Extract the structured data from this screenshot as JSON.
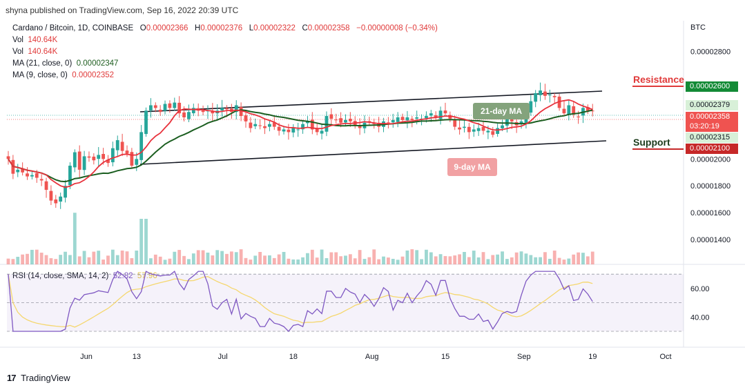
{
  "header": {
    "published": "shyna published on TradingView.com, Sep 16, 2022 20:39 UTC"
  },
  "legend": {
    "symbol": "Cardano / Bitcoin, 1D, COINBASE",
    "o_label": "O",
    "o_val": "0.00002366",
    "h_label": "H",
    "h_val": "0.00002376",
    "l_label": "L",
    "l_val": "0.00002322",
    "c_label": "C",
    "c_val": "0.00002358",
    "chg": "−0.00000008 (−0.34%)",
    "vol1_label": "Vol",
    "vol1_val": "140.64K",
    "vol2_label": "Vol",
    "vol2_val": "140.64K",
    "ma21_label": "MA (21, close, 0)",
    "ma21_val": "0.00002347",
    "ma9_label": "MA (9, close, 0)",
    "ma9_val": "0.00002352",
    "rsi_label": "RSI (14, close, SMA, 14, 2)",
    "rsi_val": "52.82",
    "rsi_sma_val": "57.96"
  },
  "axis": {
    "currency": "BTC",
    "price_ticks": [
      "0.00002800",
      "0.00002000",
      "0.00001800",
      "0.00001600",
      "0.00001400"
    ],
    "rsi_ticks": [
      "60.00",
      "40.00"
    ],
    "date_ticks": [
      "Jun",
      "13",
      "Jul",
      "18",
      "Aug",
      "15",
      "Sep",
      "19",
      "Oct"
    ]
  },
  "tags": {
    "resistance_price": "0.00002600",
    "price_a": "0.00002379",
    "current_price": "0.00002358",
    "countdown": "03:20:19",
    "price_b": "0.00002315",
    "support_price": "0.00002100"
  },
  "annotations": {
    "resistance": "Resistance",
    "support": "Support",
    "ma21_callout": "21-day MA",
    "ma9_callout": "9-day MA"
  },
  "footer": {
    "brand": "TradingView"
  },
  "colors": {
    "up": "#26a69a",
    "down": "#ef5350",
    "ma9": "#e8323c",
    "ma21": "#1b5e20",
    "rsi": "#7e57c2",
    "rsi_sma": "#f5d76e",
    "resistance": "#e03a3a",
    "support": "#c62828"
  },
  "chart_data": {
    "type": "candlestick",
    "title": "Cardano / Bitcoin, 1D, COINBASE",
    "ylabel": "BTC",
    "ylim": [
      1.25e-05,
      2.92e-05
    ],
    "x_range": [
      "2022-05-18",
      "2022-10-05"
    ],
    "start_date": "2022-05-18",
    "closes": [
      2.0,
      1.89,
      1.92,
      1.9,
      1.87,
      1.88,
      1.86,
      1.84,
      1.77,
      1.69,
      1.67,
      1.72,
      1.8,
      1.95,
      2.05,
      1.92,
      2.02,
      2.01,
      1.99,
      2.03,
      2.0,
      1.97,
      2.08,
      2.14,
      2.06,
      2.04,
      1.95,
      2.0,
      2.2,
      2.36,
      2.4,
      2.38,
      2.35,
      2.41,
      2.38,
      2.42,
      2.34,
      2.31,
      2.35,
      2.38,
      2.36,
      2.35,
      2.36,
      2.34,
      2.36,
      2.38,
      2.37,
      2.35,
      2.4,
      2.32,
      2.28,
      2.23,
      2.26,
      2.25,
      2.23,
      2.26,
      2.24,
      2.21,
      2.22,
      2.2,
      2.23,
      2.22,
      2.26,
      2.28,
      2.22,
      2.2,
      2.21,
      2.32,
      2.3,
      2.29,
      2.27,
      2.29,
      2.28,
      2.25,
      2.23,
      2.27,
      2.28,
      2.26,
      2.24,
      2.28,
      2.27,
      2.29,
      2.31,
      2.29,
      2.31,
      2.29,
      2.31,
      2.3,
      2.32,
      2.34,
      2.31,
      2.36,
      2.34,
      2.3,
      2.24,
      2.22,
      2.24,
      2.2,
      2.22,
      2.23,
      2.21,
      2.21,
      2.18,
      2.23,
      2.25,
      2.31,
      2.28,
      2.25,
      2.28,
      2.35,
      2.43,
      2.49,
      2.51,
      2.47,
      2.48,
      2.46,
      2.38,
      2.34,
      2.4,
      2.33,
      2.31,
      2.38,
      2.36,
      2.36
    ],
    "volume_ranges": [
      [
        0.2,
        0.6
      ],
      [
        0.6,
        1.6
      ],
      [
        1.6,
        3.4
      ]
    ],
    "price_levels": {
      "resistance": 2.6e-05,
      "support": 2.1e-05
    },
    "series": [
      {
        "name": "MA (21, close, 0)",
        "last": 2.347e-05
      },
      {
        "name": "MA (9, close, 0)",
        "last": 2.352e-05
      },
      {
        "name": "RSI (14, close, SMA, 14, 2)",
        "last": 52.82
      }
    ],
    "rsi_levels": [
      70,
      50,
      30
    ],
    "rsi_ticks": [
      60,
      40
    ],
    "price_ticks": [
      2.8e-05,
      2e-05,
      1.8e-05,
      1.6e-05,
      1.4e-05
    ]
  }
}
